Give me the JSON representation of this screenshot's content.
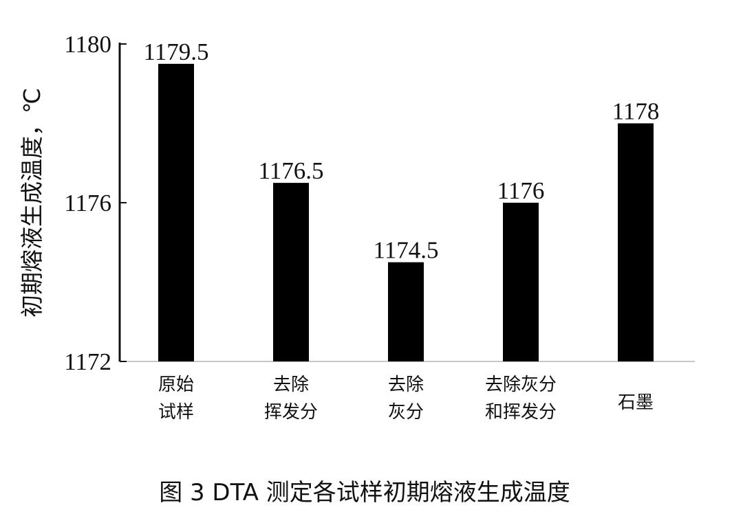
{
  "chart_data": {
    "type": "bar",
    "categories": [
      [
        "原始",
        "试样"
      ],
      [
        "去除",
        "挥发分"
      ],
      [
        "去除",
        "灰分"
      ],
      [
        "去除灰分",
        "和挥发分"
      ],
      [
        "石墨"
      ]
    ],
    "values": [
      1179.5,
      1176.5,
      1174.5,
      1176,
      1178
    ],
    "value_labels": [
      "1179.5",
      "1176.5",
      "1174.5",
      "1176",
      "1178"
    ],
    "ylabel": "初期熔液生成温度，℃",
    "yticks": [
      1172,
      1176,
      1180
    ],
    "ylim": [
      1172,
      1180
    ],
    "bar_color": "#000000",
    "grid": false,
    "legend": "none",
    "caption": "图 3  DTA 测定各试样初期熔液生成温度"
  }
}
